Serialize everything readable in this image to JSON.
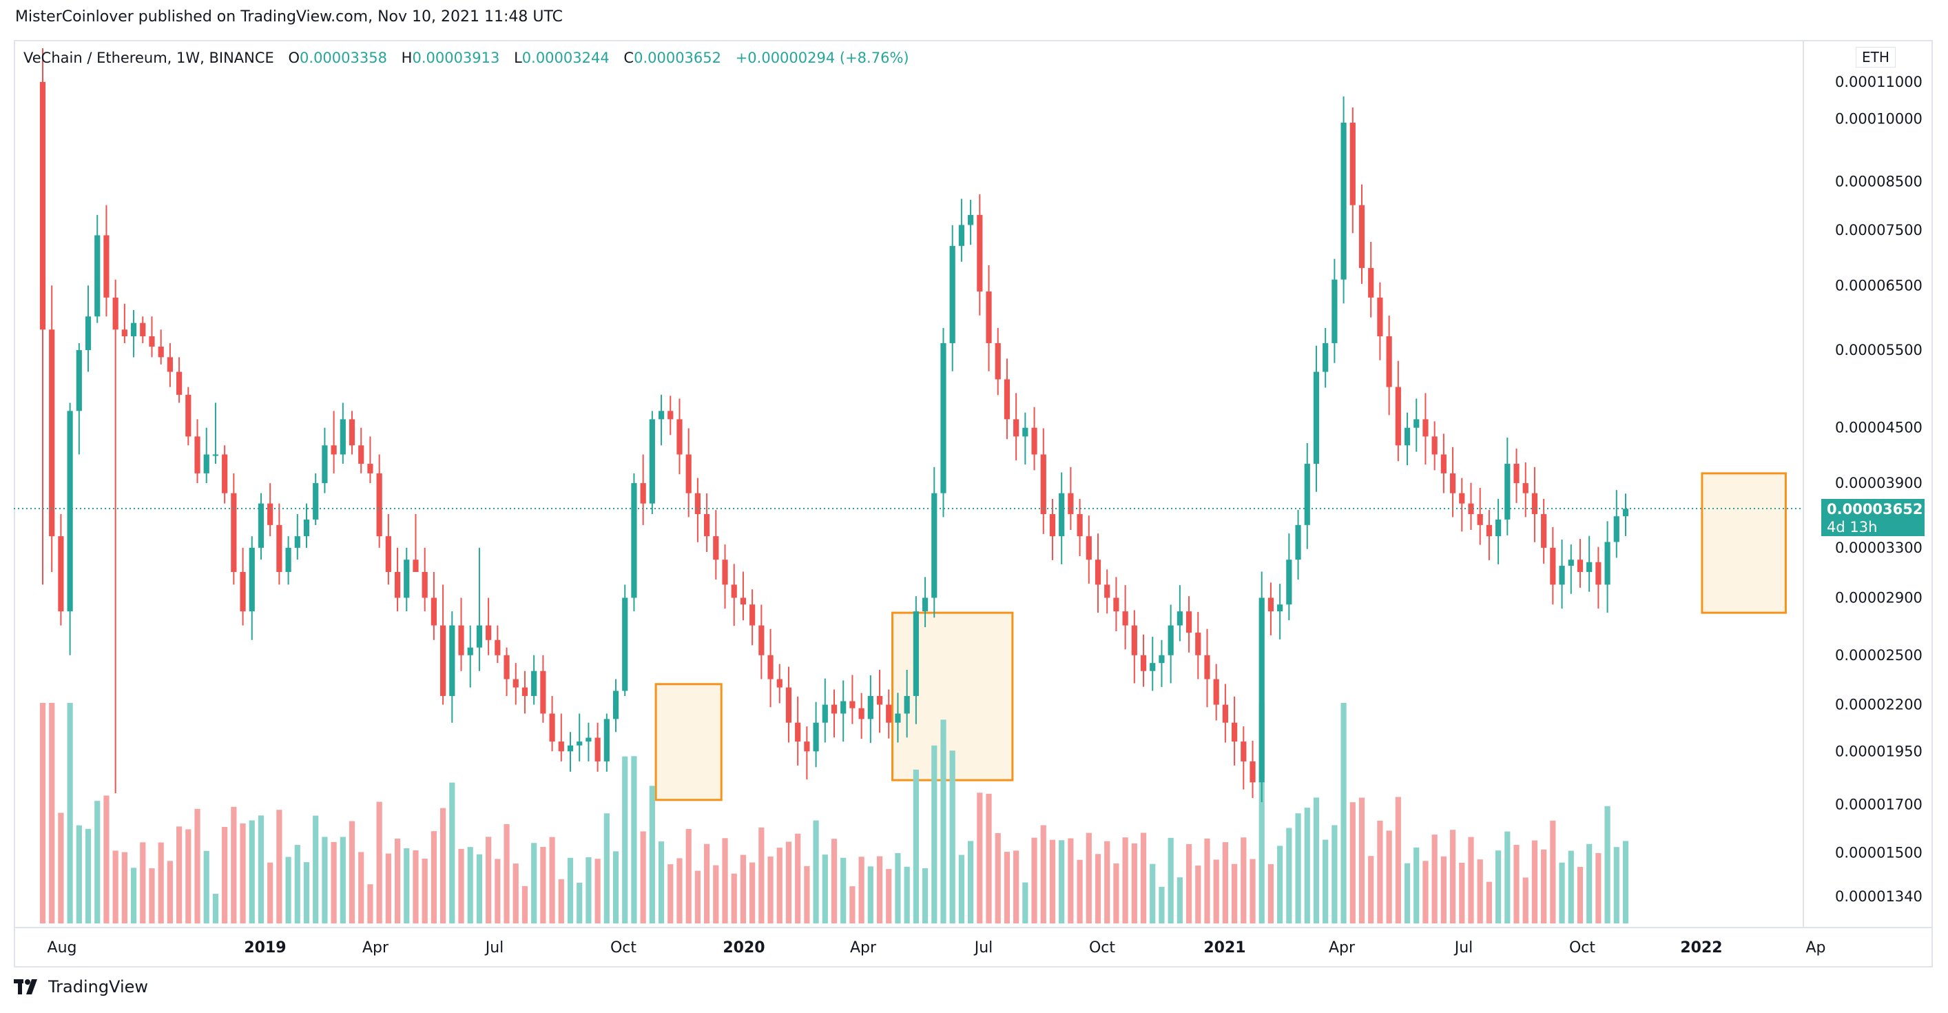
{
  "publisher": "MisterCoinlover published on TradingView.com, Nov 10, 2021 11:48 UTC",
  "header": {
    "symbol": "VeChain / Ethereum, 1W, BINANCE",
    "o_label": "O",
    "o_value": "0.00003358",
    "h_label": "H",
    "h_value": "0.00003913",
    "l_label": "L",
    "l_value": "0.00003244",
    "c_label": "C",
    "c_value": "0.00003652",
    "change": "+0.00000294 (+8.76%)"
  },
  "currency_badge": "ETH",
  "last_price": {
    "value": "0.00003652",
    "countdown": "4d 13h"
  },
  "footer": {
    "brand": "TradingView"
  },
  "colors": {
    "up": "#26a69a",
    "down": "#ef5350",
    "vol_up": "#8ad3cb",
    "vol_down": "#f5a3a3",
    "box": "#f7931a",
    "box_fill": "#fdf4e4"
  },
  "chart_data": {
    "type": "candlestick",
    "title": "VeChain / Ethereum, 1W, BINANCE",
    "y_scale": "log",
    "y_ticks": [
      "0.00011000",
      "0.00010000",
      "0.00008500",
      "0.00007500",
      "0.00006500",
      "0.00005500",
      "0.00004500",
      "0.00003900",
      "0.00003300",
      "0.00002900",
      "0.00002500",
      "0.00002200",
      "0.00001950",
      "0.00001700",
      "0.00001500",
      "0.00001340"
    ],
    "x_ticks": [
      "Aug",
      "2019",
      "Apr",
      "Jul",
      "Oct",
      "2020",
      "Apr",
      "Jul",
      "Oct",
      "2021",
      "Apr",
      "Jul",
      "Oct",
      "2022",
      "Ap"
    ],
    "last_price": 3.652e-05,
    "grid": false,
    "highlight_boxes": [
      {
        "from_week": 68,
        "to_week": 74,
        "low": 1.72e-05,
        "high": 2.32e-05
      },
      {
        "from_week": 94,
        "to_week": 106,
        "low": 1.81e-05,
        "high": 2.79e-05
      },
      {
        "from_week": 183,
        "to_week": 191,
        "low": 2.79e-05,
        "high": 4e-05
      }
    ],
    "candles": [
      [
        0.00011,
        0.00012,
        3e-05,
        5.8e-05
      ],
      [
        5.8e-05,
        6.5e-05,
        3.1e-05,
        3.4e-05
      ],
      [
        3.4e-05,
        3.6e-05,
        2.7e-05,
        2.8e-05
      ],
      [
        2.8e-05,
        4.8e-05,
        2.5e-05,
        4.7e-05
      ],
      [
        4.7e-05,
        5.6e-05,
        4.2e-05,
        5.5e-05
      ],
      [
        5.5e-05,
        6.5e-05,
        5.2e-05,
        6e-05
      ],
      [
        6e-05,
        7.8e-05,
        5.9e-05,
        7.4e-05
      ],
      [
        7.4e-05,
        8e-05,
        6e-05,
        6.3e-05
      ],
      [
        6.3e-05,
        6.6e-05,
        1.75e-05,
        5.8e-05
      ],
      [
        5.8e-05,
        6.2e-05,
        5.6e-05,
        5.7e-05
      ],
      [
        5.7e-05,
        6.1e-05,
        5.4e-05,
        5.9e-05
      ],
      [
        5.9e-05,
        6e-05,
        5.6e-05,
        5.7e-05
      ],
      [
        5.7e-05,
        6e-05,
        5.4e-05,
        5.55e-05
      ],
      [
        5.55e-05,
        5.8e-05,
        5.3e-05,
        5.4e-05
      ],
      [
        5.4e-05,
        5.6e-05,
        5e-05,
        5.2e-05
      ],
      [
        5.2e-05,
        5.4e-05,
        4.8e-05,
        4.9e-05
      ],
      [
        4.9e-05,
        5e-05,
        4.3e-05,
        4.4e-05
      ],
      [
        4.4e-05,
        4.6e-05,
        3.9e-05,
        4e-05
      ],
      [
        4e-05,
        4.5e-05,
        3.9e-05,
        4.2e-05
      ],
      [
        4.2e-05,
        4.8e-05,
        4.1e-05,
        4.2e-05
      ],
      [
        4.2e-05,
        4.3e-05,
        3.7e-05,
        3.8e-05
      ],
      [
        3.8e-05,
        4e-05,
        3e-05,
        3.1e-05
      ],
      [
        3.1e-05,
        3.3e-05,
        2.7e-05,
        2.8e-05
      ],
      [
        2.8e-05,
        3.4e-05,
        2.6e-05,
        3.3e-05
      ],
      [
        3.3e-05,
        3.8e-05,
        3.2e-05,
        3.7e-05
      ],
      [
        3.7e-05,
        3.9e-05,
        3.4e-05,
        3.5e-05
      ],
      [
        3.5e-05,
        3.7e-05,
        3e-05,
        3.1e-05
      ],
      [
        3.1e-05,
        3.4e-05,
        3e-05,
        3.3e-05
      ],
      [
        3.3e-05,
        3.6e-05,
        3.2e-05,
        3.4e-05
      ],
      [
        3.4e-05,
        3.7e-05,
        3.3e-05,
        3.55e-05
      ],
      [
        3.55e-05,
        4e-05,
        3.5e-05,
        3.9e-05
      ],
      [
        3.9e-05,
        4.5e-05,
        3.8e-05,
        4.3e-05
      ],
      [
        4.3e-05,
        4.7e-05,
        4e-05,
        4.2e-05
      ],
      [
        4.2e-05,
        4.8e-05,
        4.1e-05,
        4.6e-05
      ],
      [
        4.6e-05,
        4.7e-05,
        4.2e-05,
        4.3e-05
      ],
      [
        4.3e-05,
        4.5e-05,
        4e-05,
        4.1e-05
      ],
      [
        4.1e-05,
        4.4e-05,
        3.9e-05,
        4e-05
      ],
      [
        4e-05,
        4.2e-05,
        3.3e-05,
        3.4e-05
      ],
      [
        3.4e-05,
        3.6e-05,
        3e-05,
        3.1e-05
      ],
      [
        3.1e-05,
        3.3e-05,
        2.8e-05,
        2.9e-05
      ],
      [
        2.9e-05,
        3.3e-05,
        2.8e-05,
        3.2e-05
      ],
      [
        3.2e-05,
        3.6e-05,
        3.1e-05,
        3.1e-05
      ],
      [
        3.1e-05,
        3.3e-05,
        2.8e-05,
        2.9e-05
      ],
      [
        2.9e-05,
        3.1e-05,
        2.6e-05,
        2.7e-05
      ],
      [
        2.7e-05,
        3e-05,
        2.2e-05,
        2.25e-05
      ],
      [
        2.25e-05,
        2.8e-05,
        2.1e-05,
        2.7e-05
      ],
      [
        2.7e-05,
        2.9e-05,
        2.4e-05,
        2.5e-05
      ],
      [
        2.5e-05,
        2.7e-05,
        2.3e-05,
        2.55e-05
      ],
      [
        2.55e-05,
        3.3e-05,
        2.4e-05,
        2.7e-05
      ],
      [
        2.7e-05,
        2.9e-05,
        2.5e-05,
        2.6e-05
      ],
      [
        2.6e-05,
        2.7e-05,
        2.45e-05,
        2.5e-05
      ],
      [
        2.5e-05,
        2.55e-05,
        2.25e-05,
        2.35e-05
      ],
      [
        2.35e-05,
        2.45e-05,
        2.2e-05,
        2.3e-05
      ],
      [
        2.3e-05,
        2.4e-05,
        2.15e-05,
        2.25e-05
      ],
      [
        2.25e-05,
        2.5e-05,
        2.2e-05,
        2.4e-05
      ],
      [
        2.4e-05,
        2.5e-05,
        2.1e-05,
        2.15e-05
      ],
      [
        2.15e-05,
        2.25e-05,
        1.95e-05,
        2e-05
      ],
      [
        2e-05,
        2.15e-05,
        1.9e-05,
        1.95e-05
      ],
      [
        1.95e-05,
        2.05e-05,
        1.85e-05,
        1.98e-05
      ],
      [
        1.98e-05,
        2.15e-05,
        1.9e-05,
        2e-05
      ],
      [
        2e-05,
        2.1e-05,
        1.9e-05,
        2.02e-05
      ],
      [
        2.02e-05,
        2.1e-05,
        1.85e-05,
        1.9e-05
      ],
      [
        1.9e-05,
        2.15e-05,
        1.85e-05,
        2.12e-05
      ],
      [
        2.12e-05,
        2.35e-05,
        2.05e-05,
        2.28e-05
      ],
      [
        2.28e-05,
        3e-05,
        2.25e-05,
        2.9e-05
      ],
      [
        2.9e-05,
        4e-05,
        2.8e-05,
        3.9e-05
      ],
      [
        3.9e-05,
        4.2e-05,
        3.5e-05,
        3.7e-05
      ],
      [
        3.7e-05,
        4.7e-05,
        3.6e-05,
        4.6e-05
      ],
      [
        4.6e-05,
        4.9e-05,
        4.3e-05,
        4.7e-05
      ]
    ],
    "volume_note": "weekly volume bars colored by candle direction"
  }
}
